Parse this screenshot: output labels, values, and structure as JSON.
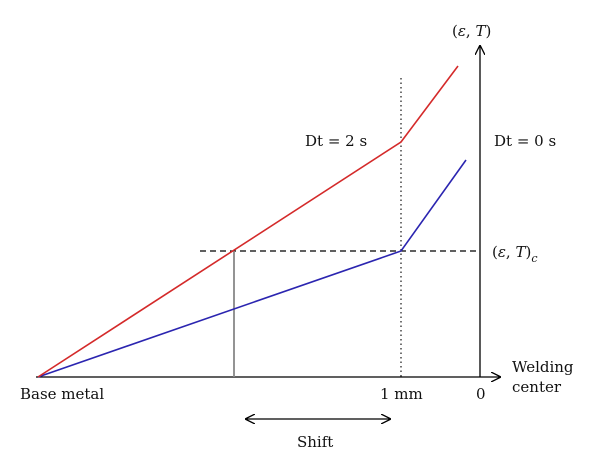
{
  "axis": {
    "y_label_open": "(",
    "y_label_eps": "ε",
    "y_label_sep": ", ",
    "y_label_T": "T",
    "y_label_close": ")",
    "x_label_line1": "Welding",
    "x_label_line2": "center"
  },
  "labels": {
    "dt2": "Dt = 2 s",
    "dt0": "Dt = 0 s",
    "critical_open": "(",
    "critical_eps": "ε",
    "critical_sep": ", ",
    "critical_T": "T",
    "critical_close": ")",
    "critical_sub": "c",
    "base_metal": "Base metal",
    "one_mm": "1 mm",
    "zero": "0",
    "shift": "Shift"
  },
  "colors": {
    "dt2_curve": "#d42a2a",
    "dt0_curve": "#2b25b0",
    "axes": "#000000",
    "shift_marker": "#888888"
  }
}
